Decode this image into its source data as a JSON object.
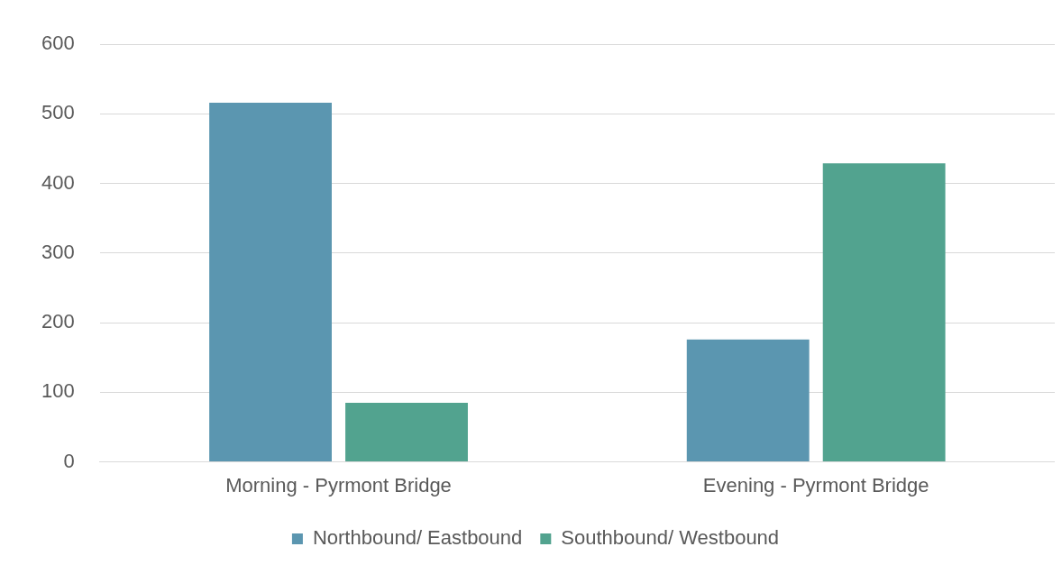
{
  "chart_data": {
    "type": "bar",
    "categories": [
      "Morning - Pyrmont Bridge",
      "Evening - Pyrmont Bridge"
    ],
    "series": [
      {
        "name": "Northbound/ Eastbound",
        "color": "#5b96b0",
        "values": [
          516,
          176
        ]
      },
      {
        "name": "Southbound/ Westbound",
        "color": "#52a38f",
        "values": [
          85,
          429
        ]
      }
    ],
    "ylim": [
      0,
      600
    ],
    "yticks": [
      0,
      100,
      200,
      300,
      400,
      500,
      600
    ],
    "grid": "y",
    "legend": "bottom"
  }
}
